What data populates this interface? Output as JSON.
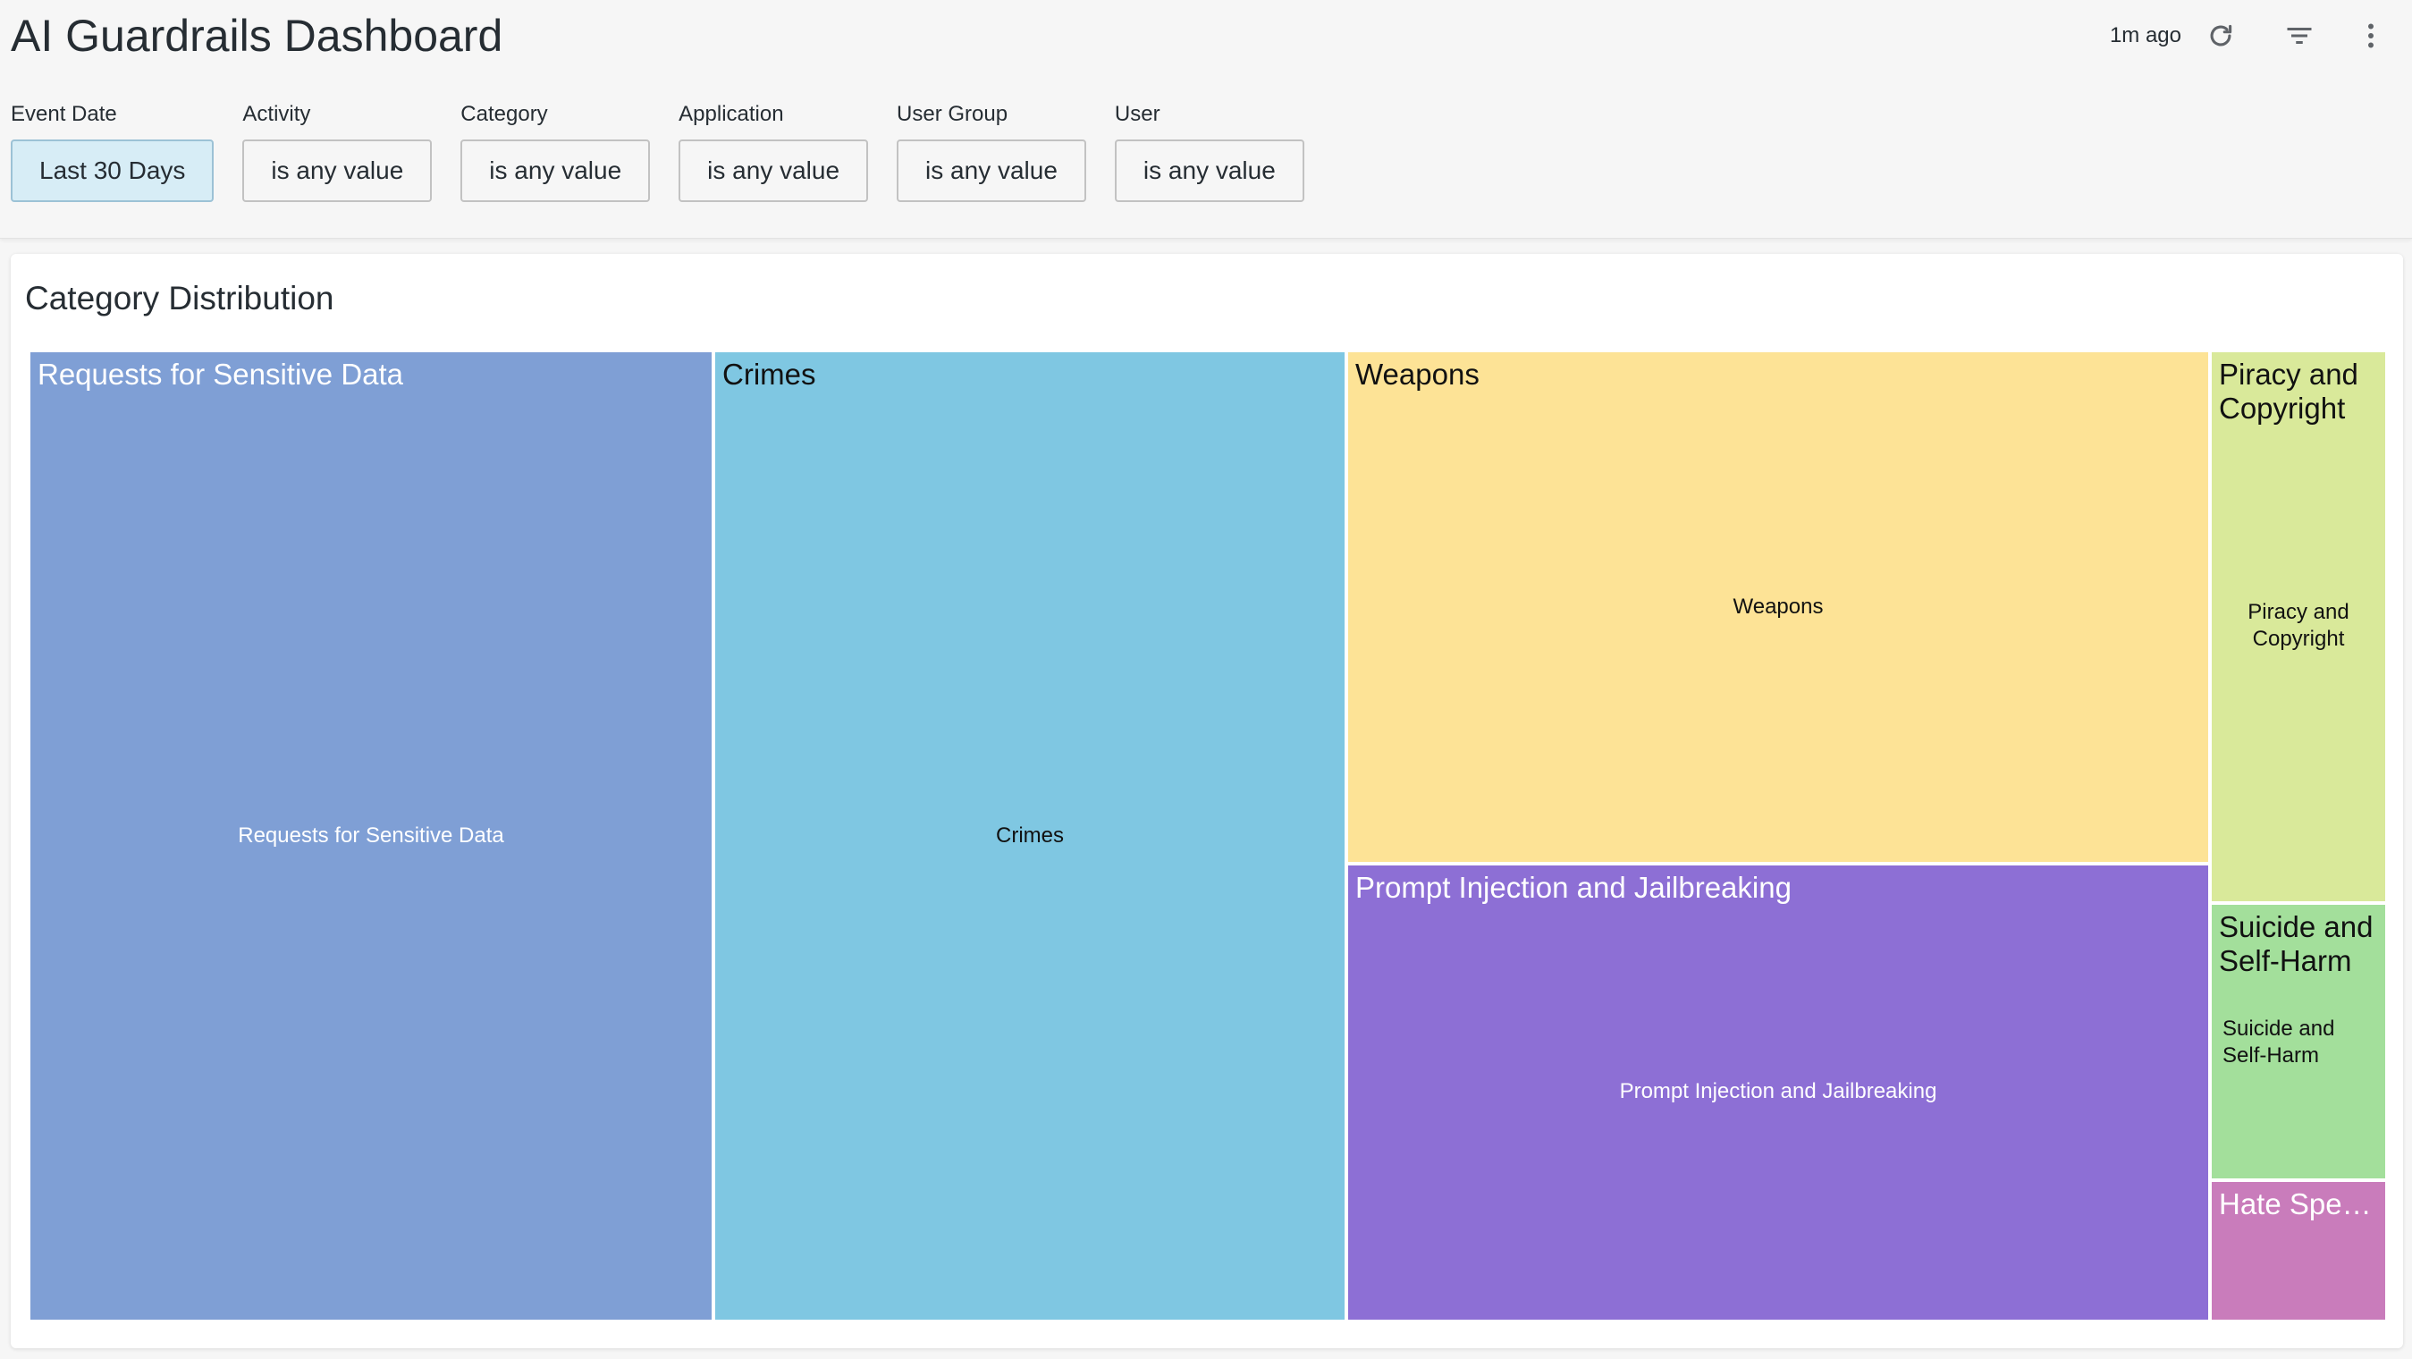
{
  "header": {
    "title": "AI Guardrails Dashboard",
    "last_updated": "1m ago",
    "icons": [
      "refresh-icon",
      "filter-icon",
      "more-vertical-icon"
    ]
  },
  "filters": [
    {
      "label": "Event Date",
      "value": "Last 30 Days",
      "active": true
    },
    {
      "label": "Activity",
      "value": "is any value"
    },
    {
      "label": "Category",
      "value": "is any value"
    },
    {
      "label": "Application",
      "value": "is any value"
    },
    {
      "label": "User Group",
      "value": "is any value"
    },
    {
      "label": "User",
      "value": "is any value"
    }
  ],
  "panel": {
    "title": "Category Distribution"
  },
  "chart_data": {
    "type": "treemap",
    "tiles": [
      {
        "header": "Requests for Sensitive Data",
        "label": "Requests for Sensitive Data",
        "color": "#7f9fd5"
      },
      {
        "header": "Crimes",
        "label": "Crimes",
        "color": "#7fc7e2"
      },
      {
        "header": "Weapons",
        "label": "Weapons",
        "color": "#fde396"
      },
      {
        "header": "Prompt Injection and Jailbreaking",
        "label": "Prompt Injection and Jailbreaking",
        "color": "#8d6fd5"
      },
      {
        "header": "Piracy and Copyright",
        "label": "Piracy and Copyright",
        "color": "#d9e99a"
      },
      {
        "header": "Suicide and Self-Harm",
        "label": "Suicide and Self-Harm",
        "color": "#a3df9b"
      },
      {
        "header": "Hate Speec...",
        "label": "",
        "color": "#c97cbb"
      }
    ]
  }
}
